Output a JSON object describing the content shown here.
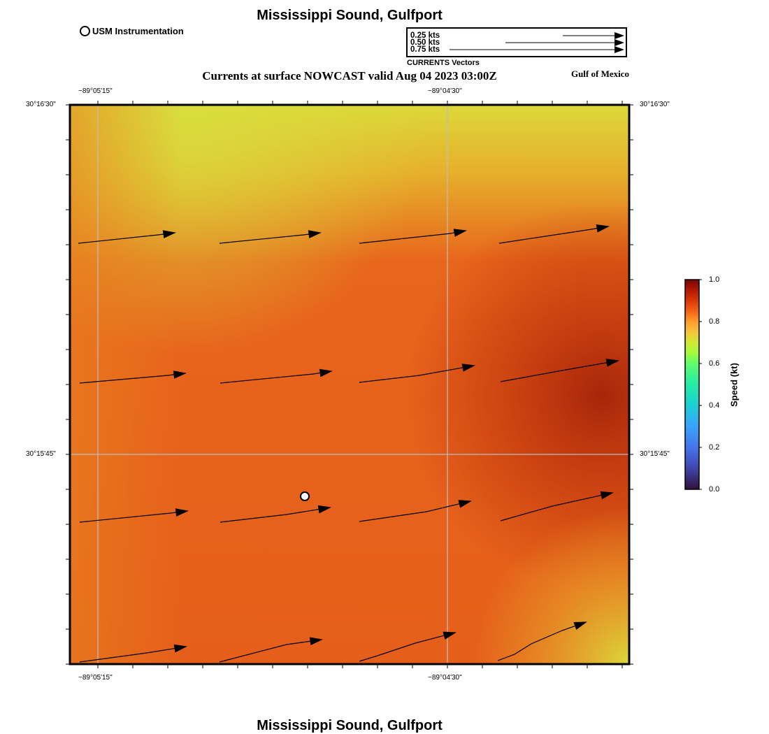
{
  "map": {
    "title": "Mississippi Sound, Gulfport",
    "subtitle": "Currents at surface NOWCAST valid Aug 04 2023 03:00Z",
    "region_label": "Gulf of Mexico",
    "footer_title": "Mississippi Sound, Gulfport"
  },
  "legend": {
    "station_label": "USM Instrumentation",
    "vector_scale": [
      {
        "label": "0.25 kts",
        "knots": 0.25
      },
      {
        "label": "0.50 kts",
        "knots": 0.5
      },
      {
        "label": "0.75 kts",
        "knots": 0.75
      }
    ],
    "vector_caption": "CURRENTS Vectors"
  },
  "axes": {
    "top_lon_labels": [
      "−89°05'15\"",
      "−89°04'30\""
    ],
    "bottom_lon_labels": [
      "−89°05'15\"",
      "−89°04'30\""
    ],
    "left_lat_labels": [
      "30°16'30\"",
      "30°15'45\""
    ],
    "right_lat_labels": [
      "30°16'30\"",
      "30°15'45\""
    ]
  },
  "colorbar": {
    "title": "Speed (kt)",
    "ticks": [
      "1.0",
      "0.8",
      "0.6",
      "0.4",
      "0.2",
      "0.0"
    ],
    "range": [
      0,
      1
    ]
  },
  "colors": {
    "field_orange": "#e8601a",
    "field_yellow": "#dcd83a",
    "field_dark": "#b52c0a",
    "grid": "#bdbdbd"
  },
  "station": {
    "name": "USM Instrumentation",
    "icon": "station-marker-icon"
  }
}
